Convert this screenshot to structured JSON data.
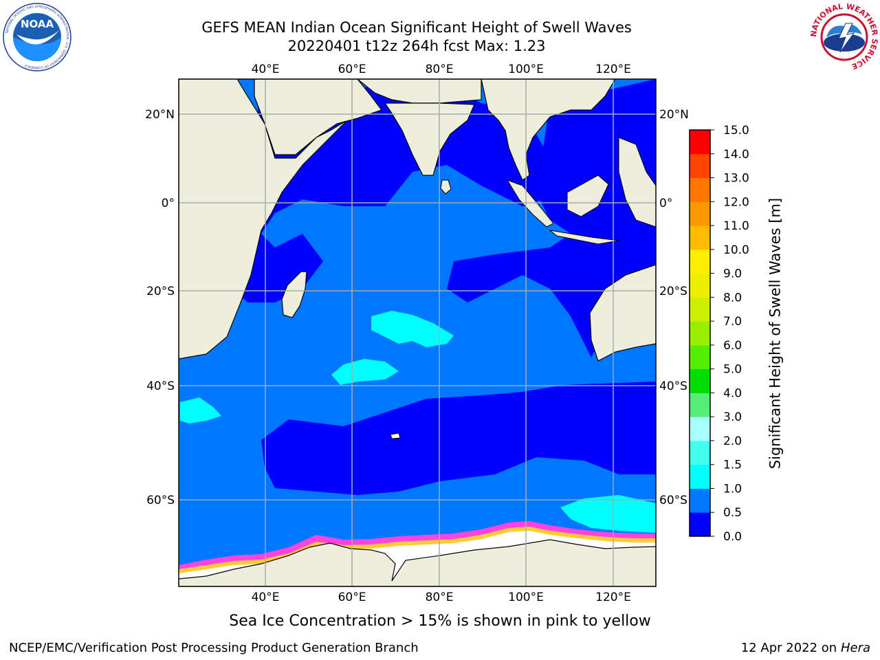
{
  "title": {
    "line1": "GEFS MEAN Indian Ocean Significant Height of Swell Waves",
    "line2": "20220401 t12z 264h fcst   Max: 1.23"
  },
  "logos": {
    "left": {
      "name": "noaa-logo",
      "text": "NOAA",
      "ring_text": "NATIONAL OCEANIC AND ATMOSPHERIC ADMINISTRATION · U.S. DEPARTMENT OF COMMERCE"
    },
    "right": {
      "name": "nws-logo",
      "ring_text": "NATIONAL WEATHER SERVICE"
    }
  },
  "map": {
    "lon_labels": [
      "40°E",
      "60°E",
      "80°E",
      "100°E",
      "120°E"
    ],
    "lat_labels": [
      "20°N",
      "0°",
      "20°S",
      "40°S",
      "60°S"
    ],
    "lon_range": [
      "20°E",
      "130°E"
    ],
    "lat_range": [
      "28°N",
      "74°S"
    ],
    "grid": true,
    "colors": {
      "land": "#eeeedd",
      "ice": "#ffffff",
      "swell_0_0_5": "#0000ff",
      "swell_0_5_1": "#0077ff",
      "swell_1_1_5": "#00ffff",
      "ice_edge_pink": "#ff44dd",
      "ice_edge_yellow": "#ffcc33"
    }
  },
  "colorbar": {
    "label": "Significant Height of Swell Waves [m]",
    "ticks": [
      "0.0",
      "0.5",
      "1.0",
      "1.5",
      "2.0",
      "3.0",
      "4.0",
      "5.0",
      "6.0",
      "7.0",
      "8.0",
      "9.0",
      "10.0",
      "11.0",
      "12.0",
      "13.0",
      "14.0",
      "15.0"
    ],
    "colors": [
      "#0000ff",
      "#0077ff",
      "#00ffff",
      "#44ffee",
      "#aaffff",
      "#55ee77",
      "#00dd00",
      "#55ee00",
      "#99ee00",
      "#ccee00",
      "#eeee00",
      "#ffee00",
      "#ffbb00",
      "#ff9900",
      "#ff7700",
      "#ff4400",
      "#ff0000"
    ]
  },
  "note": "Sea Ice Concentration > 15% is shown in pink to yellow",
  "footer": {
    "credit": "NCEP/EMC/Verification Post Processing Product Generation Branch",
    "date_prefix": "12 Apr 2022 on ",
    "machine": "Hera"
  }
}
